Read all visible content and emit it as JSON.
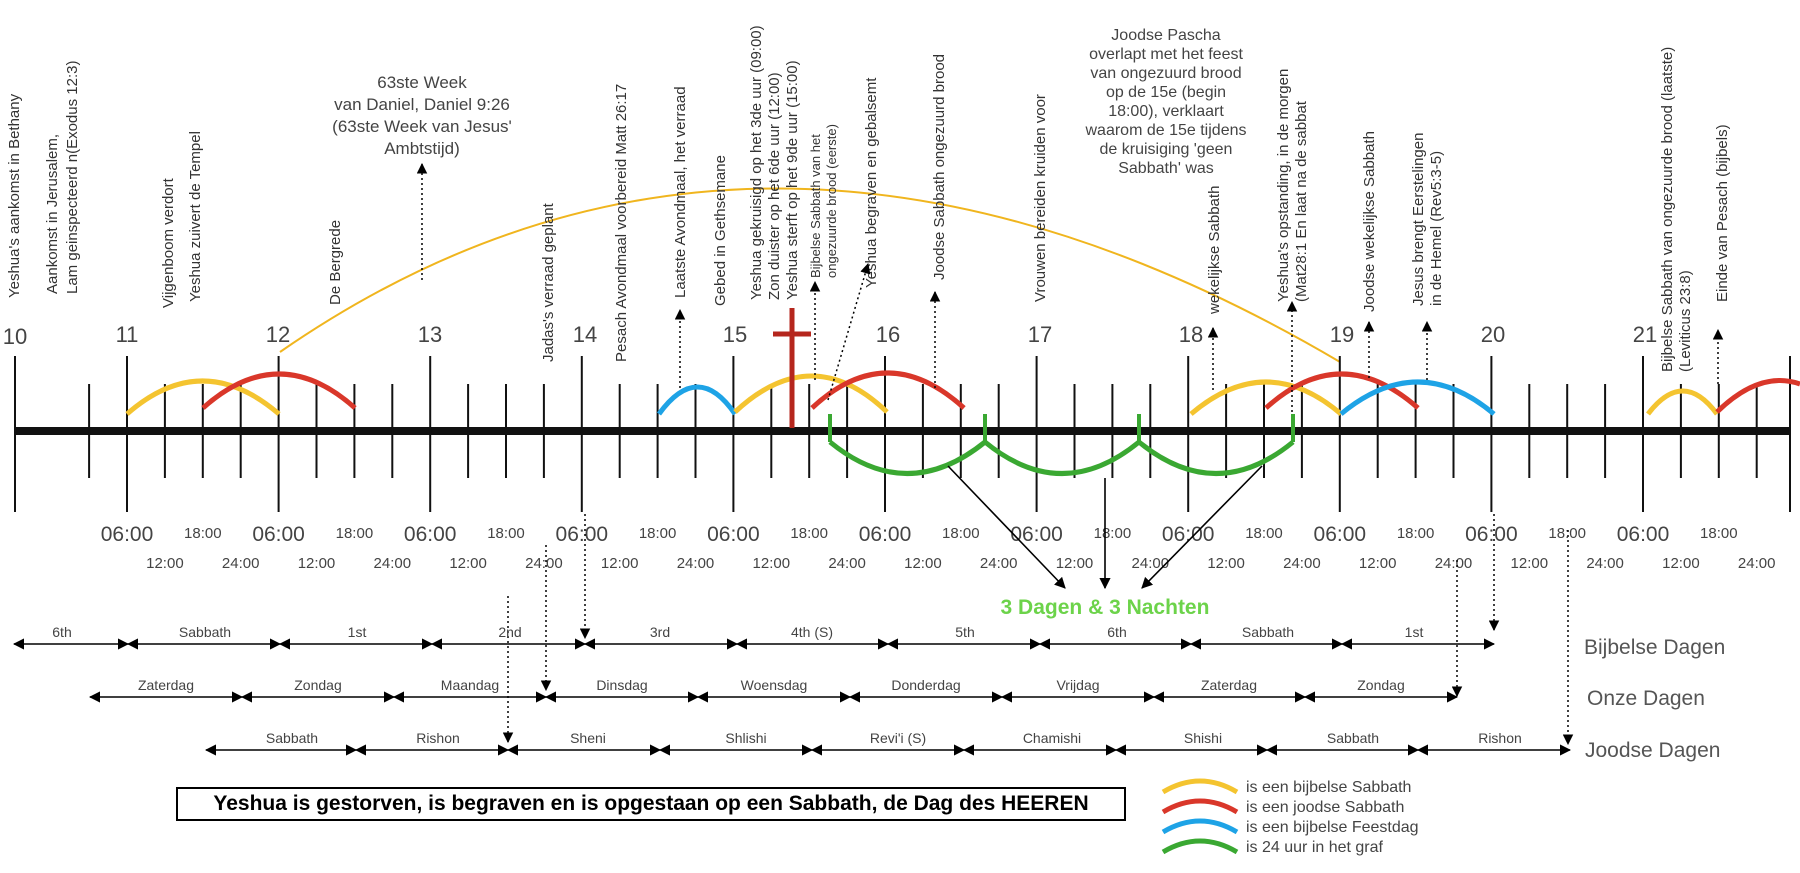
{
  "day_numbers": [
    {
      "label": "10"
    },
    {
      "label": "11"
    },
    {
      "label": "12"
    },
    {
      "label": "13"
    },
    {
      "label": "14"
    },
    {
      "label": "15"
    },
    {
      "label": "16"
    },
    {
      "label": "17"
    },
    {
      "label": "18"
    },
    {
      "label": "19"
    },
    {
      "label": "20"
    },
    {
      "label": "21"
    }
  ],
  "time_labels": {
    "big": "06:00",
    "row1_small": [
      "18:00",
      "18:00",
      "18:00",
      "18:00",
      "18:00",
      "18:00",
      "18:00",
      "18:00",
      "18:00",
      "18:00",
      "18:00"
    ],
    "row2_small": [
      "12:00",
      "24:00",
      "12:00",
      "24:00",
      "12:00",
      "24:00",
      "12:00",
      "24:00",
      "12:00",
      "24:00",
      "12:00",
      "24:00",
      "12:00",
      "24:00",
      "12:00",
      "24:00",
      "12:00",
      "24:00",
      "12:00",
      "24:00",
      "12:00",
      "24:00"
    ]
  },
  "events": [
    {
      "text": "Yeshua's aankomst in Bethany"
    },
    {
      "text": "Aankomst in Jerusalem,"
    },
    {
      "text": "Lam geinspecteerd n(Exodus 12:3)"
    },
    {
      "text": "Vijgenboom verdort"
    },
    {
      "text": "Yeshua zuivert de Tempel"
    },
    {
      "text": "De Bergrede"
    },
    {
      "text": "Jadas's verraad geplant"
    },
    {
      "text": "Pesach Avondmaal voorbereid Matt 26:17"
    },
    {
      "text": "Laatste Avondmaal, het verraad"
    },
    {
      "text": "Gebed in Gethsemane"
    },
    {
      "text": "Yeshua gekruisigd op het 3de uur (09:00)"
    },
    {
      "text": "Zon duister op het 6de uur (12:00)"
    },
    {
      "text": "Yeshua sterft op het 9de uur (15:00)"
    },
    {
      "text": "Bijbelse Sabbath van het"
    },
    {
      "text": "ongezuurde brood (eerste)"
    },
    {
      "text": "Yeshua begraven en gebalsemt"
    },
    {
      "text": "Joodse Sabbath ongezuurd brood"
    },
    {
      "text": "Vrouwen bereiden kruiden voor"
    },
    {
      "text": "wekelijkse Sabbath"
    },
    {
      "text": "Yeshua's opstanding, in de morgen"
    },
    {
      "text": "(Mat28:1 En laat na de sabbat"
    },
    {
      "text": "Joodse  wekelijkse Sabbath"
    },
    {
      "text": "Jesus brengt Eerstelingen"
    },
    {
      "text": "in de Hemel (Rev5:3-5)"
    },
    {
      "text": "Bijbelse Sabbath van ongezuurde brood (laatste)"
    },
    {
      "text": "(Leviticus 23:8)"
    },
    {
      "text": "Einde van Pesach (bijbels)"
    }
  ],
  "callouts": {
    "week63": [
      "63ste Week",
      "van Daniel, Daniel 9:26",
      "(63ste Week van Jesus'",
      "Ambtstijd)"
    ],
    "pascha": [
      "Joodse Pascha",
      "overlapt met het feest",
      "van ongezuurd brood",
      "op de 15e (begin",
      "18:00), verklaart",
      "waarom de 15e tijdens",
      "de kruisiging 'geen",
      "Sabbath' was"
    ]
  },
  "three_days_label": "3 Dagen & 3 Nachten",
  "calendar_rows": [
    {
      "title": "Bijbelse Dagen",
      "segments": [
        "6th",
        "Sabbath",
        "1st",
        "2nd",
        "3rd",
        "4th (S)",
        "5th",
        "6th",
        "Sabbath",
        "1st"
      ]
    },
    {
      "title": "Onze Dagen",
      "segments": [
        "Zaterdag",
        "Zondag",
        "Maandag",
        "Dinsdag",
        "Woensdag",
        "Donderdag",
        "Vrijdag",
        "Zaterdag",
        "Zondag"
      ]
    },
    {
      "title": "Joodse Dagen",
      "segments": [
        "Sabbath",
        "Rishon",
        "Sheni",
        "Shlishi",
        "Revi'i (S)",
        "Chamishi",
        "Shishi",
        "Sabbath",
        "Rishon"
      ]
    }
  ],
  "banner": "Yeshua is gestorven, is begraven en is opgestaan op een Sabbath, de Dag des HEEREN",
  "legend": [
    {
      "label": "is een bijbelse Sabbath",
      "color": "#f4c430"
    },
    {
      "label": "is een joodse Sabbath",
      "color": "#d9372a"
    },
    {
      "label": "is een bijbelse Feestdag",
      "color": "#1ea3e6"
    },
    {
      "label": "is 24 uur in het graf",
      "color": "#3aa832"
    }
  ],
  "colors": {
    "biblical_sabbath": "#f4c430",
    "jewish_sabbath": "#d9372a",
    "feast_day": "#1ea3e6",
    "grave": "#3aa832",
    "cross": "#b5261d",
    "headline_green": "#6cd34a"
  }
}
